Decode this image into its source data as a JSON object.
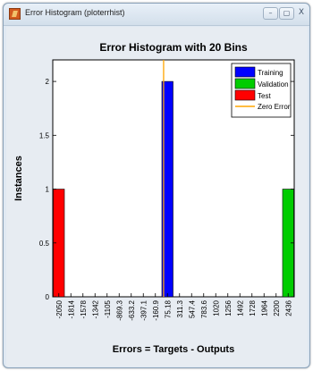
{
  "window": {
    "title": "Error Histogram (ploterrhist)",
    "minimize_glyph": "–",
    "maximize_glyph": "▢",
    "close_glyph": "X"
  },
  "chart_data": {
    "type": "bar",
    "title": "Error Histogram with 20 Bins",
    "xlabel": "Errors = Targets - Outputs",
    "ylabel": "Instances",
    "categories": [
      "-2050",
      "-1814",
      "-1578",
      "-1342",
      "-1105",
      "-869.3",
      "-633.2",
      "-397.1",
      "-160.9",
      "75.18",
      "311.3",
      "547.4",
      "783.6",
      "1020",
      "1256",
      "1492",
      "1728",
      "1964",
      "2200",
      "2436"
    ],
    "series": [
      {
        "name": "Training",
        "color": "#0000ff",
        "values": [
          0,
          0,
          0,
          0,
          0,
          0,
          0,
          0,
          0,
          2,
          0,
          0,
          0,
          0,
          0,
          0,
          0,
          0,
          0,
          0
        ]
      },
      {
        "name": "Validation",
        "color": "#00cc00",
        "values": [
          0,
          0,
          0,
          0,
          0,
          0,
          0,
          0,
          0,
          0,
          0,
          0,
          0,
          0,
          0,
          0,
          0,
          0,
          0,
          1
        ]
      },
      {
        "name": "Test",
        "color": "#ff0000",
        "values": [
          1,
          0,
          0,
          0,
          0,
          0,
          0,
          0,
          0,
          0,
          0,
          0,
          0,
          0,
          0,
          0,
          0,
          0,
          0,
          0
        ]
      }
    ],
    "zero_error": {
      "name": "Zero Error",
      "color": "#ffa500",
      "x": 0
    },
    "yticks": [
      "0",
      "0.5",
      "1",
      "1.5",
      "2"
    ],
    "ylim": [
      0,
      2.2
    ],
    "grid": false,
    "legend_position": "top-right"
  }
}
